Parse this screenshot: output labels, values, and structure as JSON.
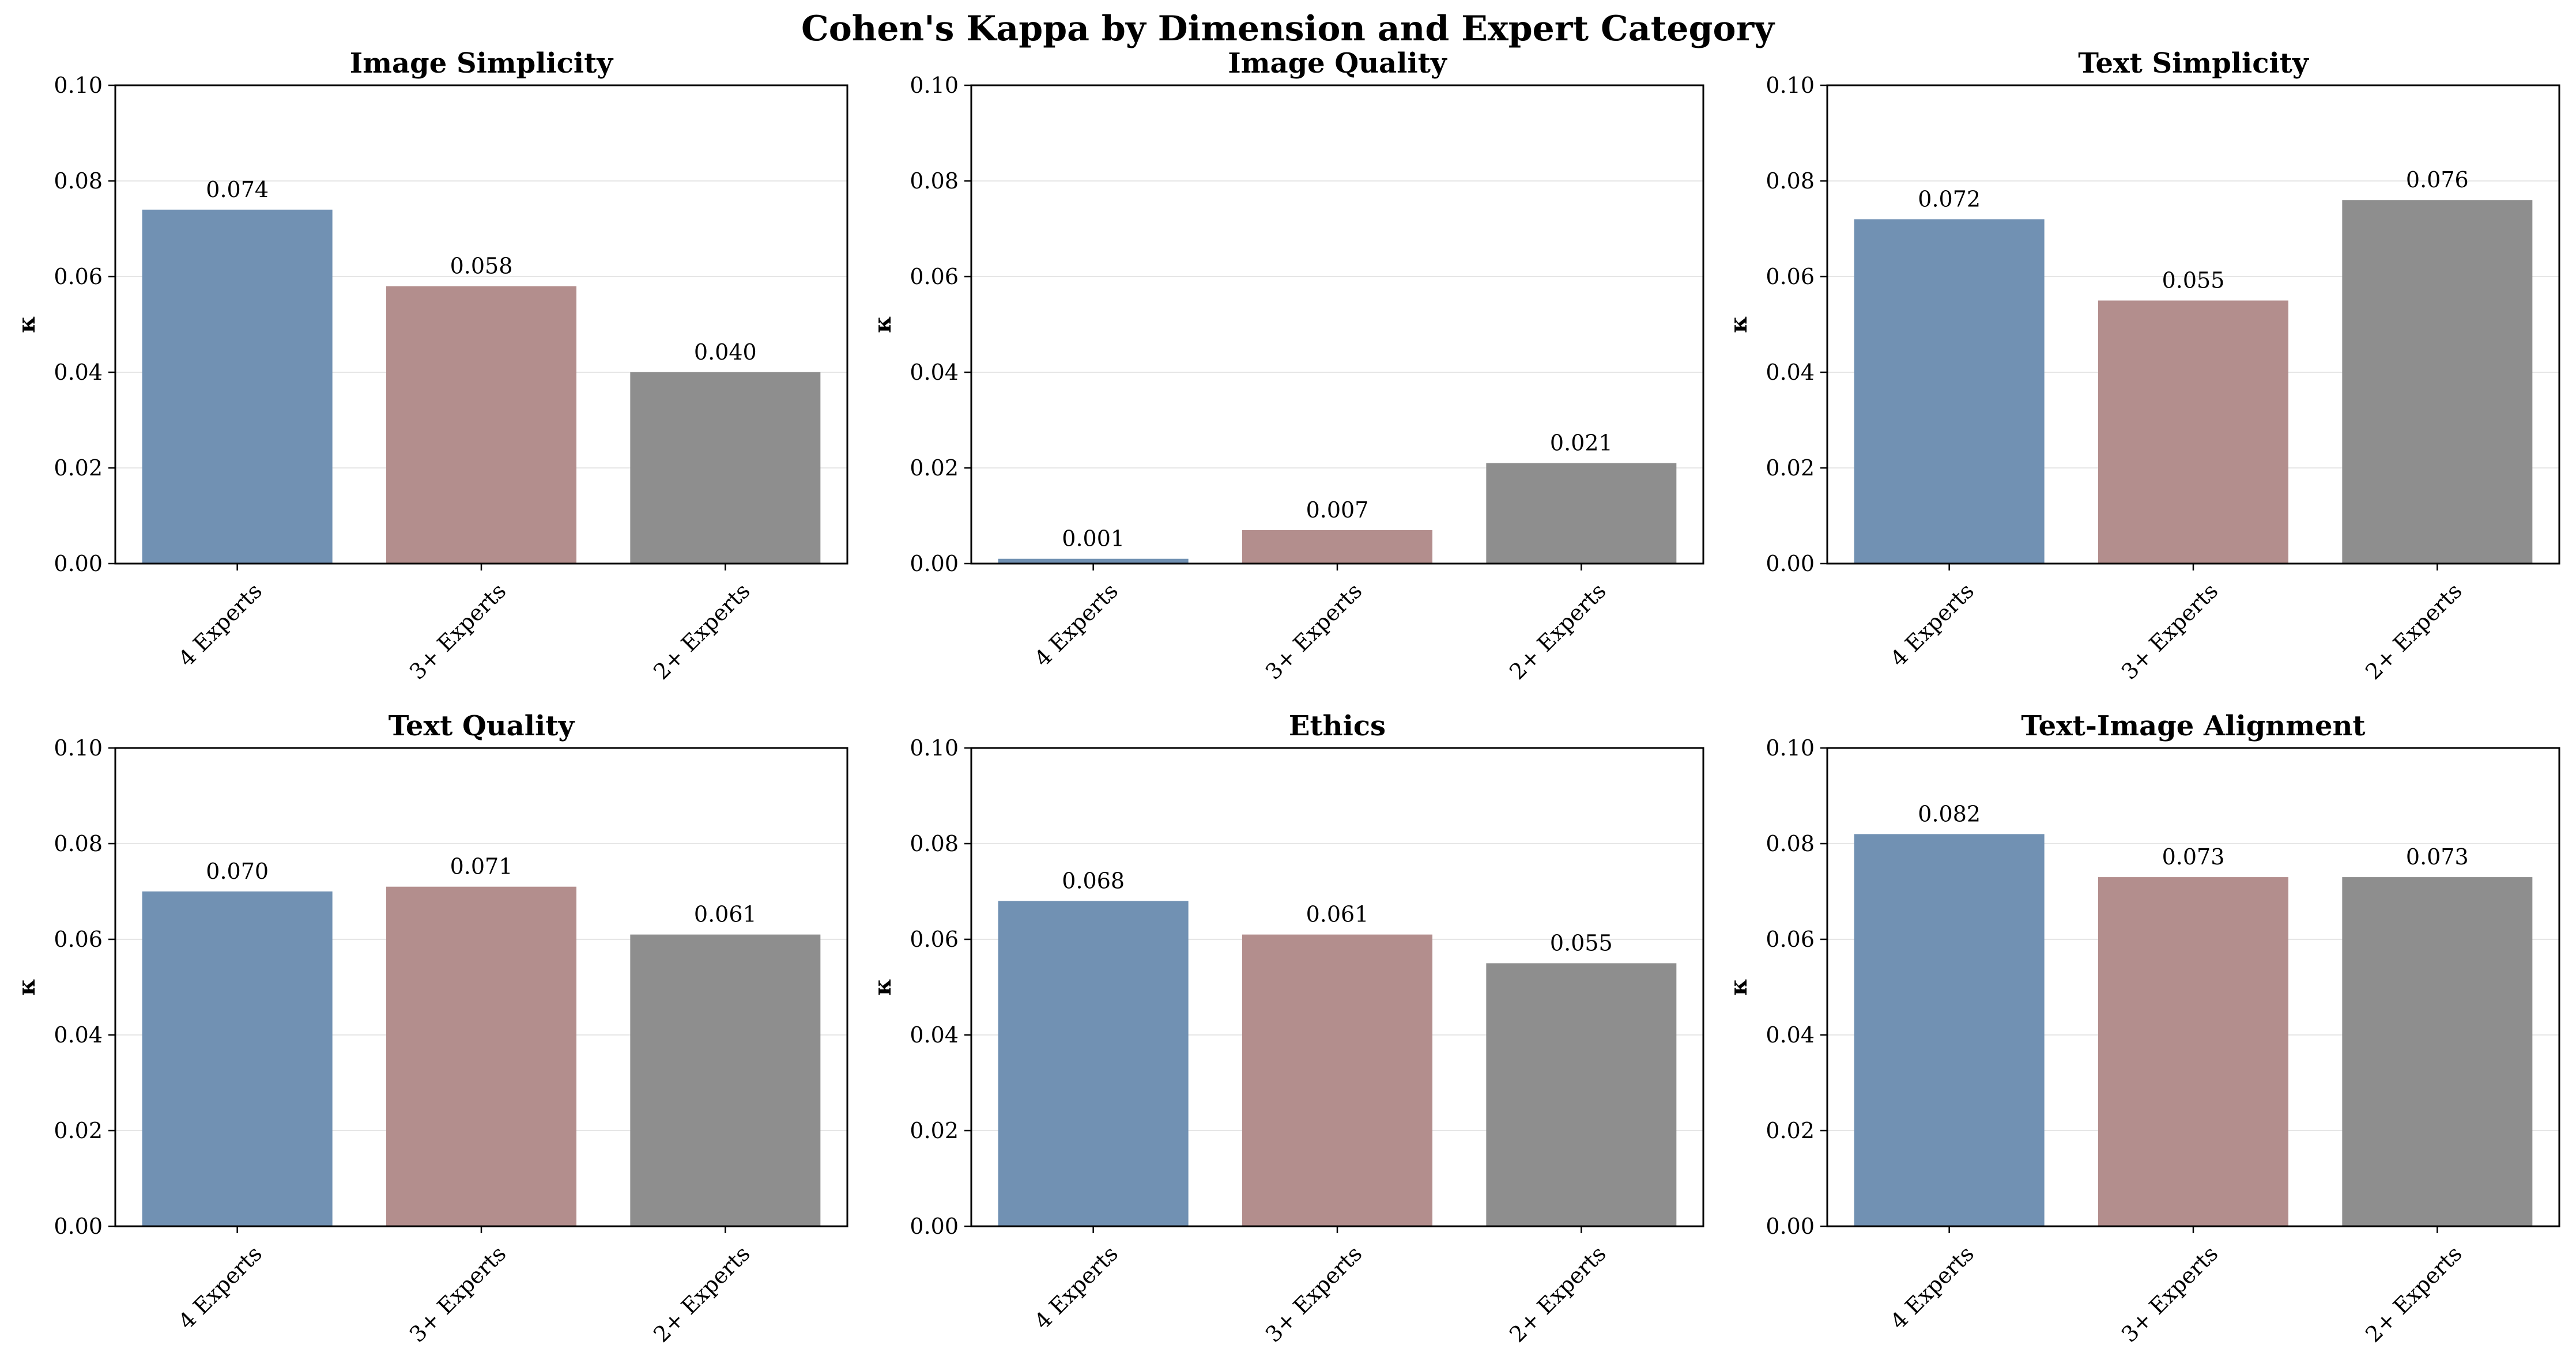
{
  "title": "Cohen's Kappa by Dimension and Expert Category",
  "colors": {
    "4 Experts": "#7191b3",
    "3+ Experts": "#b38e8d",
    "2+ Experts": "#8e8e8e"
  },
  "chart_data": [
    {
      "type": "bar",
      "title": "Image Simplicity",
      "ylabel": "κ",
      "categories": [
        "4 Experts",
        "3+ Experts",
        "2+ Experts"
      ],
      "values": [
        0.074,
        0.058,
        0.04
      ],
      "value_labels": [
        "0.074",
        "0.058",
        "0.040"
      ],
      "ylim": [
        0,
        0.1
      ],
      "yticks": [
        "0.00",
        "0.02",
        "0.04",
        "0.06",
        "0.08",
        "0.10"
      ],
      "grid": "y"
    },
    {
      "type": "bar",
      "title": "Image Quality",
      "ylabel": "κ",
      "categories": [
        "4 Experts",
        "3+ Experts",
        "2+ Experts"
      ],
      "values": [
        0.001,
        0.007,
        0.021
      ],
      "value_labels": [
        "0.001",
        "0.007",
        "0.021"
      ],
      "ylim": [
        0,
        0.1
      ],
      "yticks": [
        "0.00",
        "0.02",
        "0.04",
        "0.06",
        "0.08",
        "0.10"
      ],
      "grid": "y"
    },
    {
      "type": "bar",
      "title": "Text Simplicity",
      "ylabel": "κ",
      "categories": [
        "4 Experts",
        "3+ Experts",
        "2+ Experts"
      ],
      "values": [
        0.072,
        0.055,
        0.076
      ],
      "value_labels": [
        "0.072",
        "0.055",
        "0.076"
      ],
      "ylim": [
        0,
        0.1
      ],
      "yticks": [
        "0.00",
        "0.02",
        "0.04",
        "0.06",
        "0.08",
        "0.10"
      ],
      "grid": "y"
    },
    {
      "type": "bar",
      "title": "Text Quality",
      "ylabel": "κ",
      "categories": [
        "4 Experts",
        "3+ Experts",
        "2+ Experts"
      ],
      "values": [
        0.07,
        0.071,
        0.061
      ],
      "value_labels": [
        "0.070",
        "0.071",
        "0.061"
      ],
      "ylim": [
        0,
        0.1
      ],
      "yticks": [
        "0.00",
        "0.02",
        "0.04",
        "0.06",
        "0.08",
        "0.10"
      ],
      "grid": "y"
    },
    {
      "type": "bar",
      "title": "Ethics",
      "ylabel": "κ",
      "categories": [
        "4 Experts",
        "3+ Experts",
        "2+ Experts"
      ],
      "values": [
        0.068,
        0.061,
        0.055
      ],
      "value_labels": [
        "0.068",
        "0.061",
        "0.055"
      ],
      "ylim": [
        0,
        0.1
      ],
      "yticks": [
        "0.00",
        "0.02",
        "0.04",
        "0.06",
        "0.08",
        "0.10"
      ],
      "grid": "y"
    },
    {
      "type": "bar",
      "title": "Text-Image Alignment",
      "ylabel": "κ",
      "categories": [
        "4 Experts",
        "3+ Experts",
        "2+ Experts"
      ],
      "values": [
        0.082,
        0.073,
        0.073
      ],
      "value_labels": [
        "0.082",
        "0.073",
        "0.073"
      ],
      "ylim": [
        0,
        0.1
      ],
      "yticks": [
        "0.00",
        "0.02",
        "0.04",
        "0.06",
        "0.08",
        "0.10"
      ],
      "grid": "y"
    }
  ]
}
